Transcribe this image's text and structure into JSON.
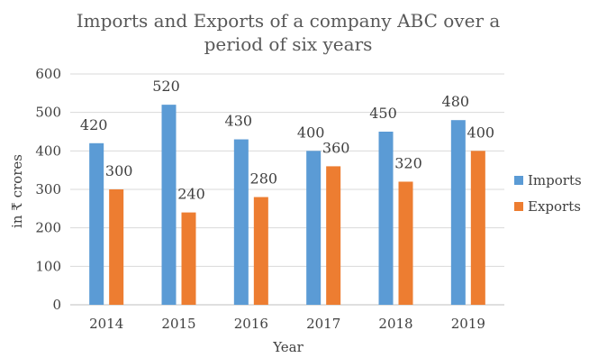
{
  "chart_data": {
    "type": "bar",
    "title_lines": [
      "Imports and Exports of a company ABC over a",
      "period of six years"
    ],
    "xlabel": "Year",
    "ylabel": "in ₹ crores",
    "ylim": [
      0,
      600
    ],
    "yticks": [
      "0",
      "100",
      "200",
      "300",
      "400",
      "500",
      "600"
    ],
    "categories": [
      "2014",
      "2015",
      "2016",
      "2017",
      "2018",
      "2019"
    ],
    "series": [
      {
        "name": "Imports",
        "color": "#5b9bd5",
        "values": [
          420,
          520,
          430,
          400,
          450,
          480
        ]
      },
      {
        "name": "Exports",
        "color": "#ed7d31",
        "values": [
          300,
          240,
          280,
          360,
          320,
          400
        ]
      }
    ],
    "grid": true,
    "legend": "right"
  }
}
